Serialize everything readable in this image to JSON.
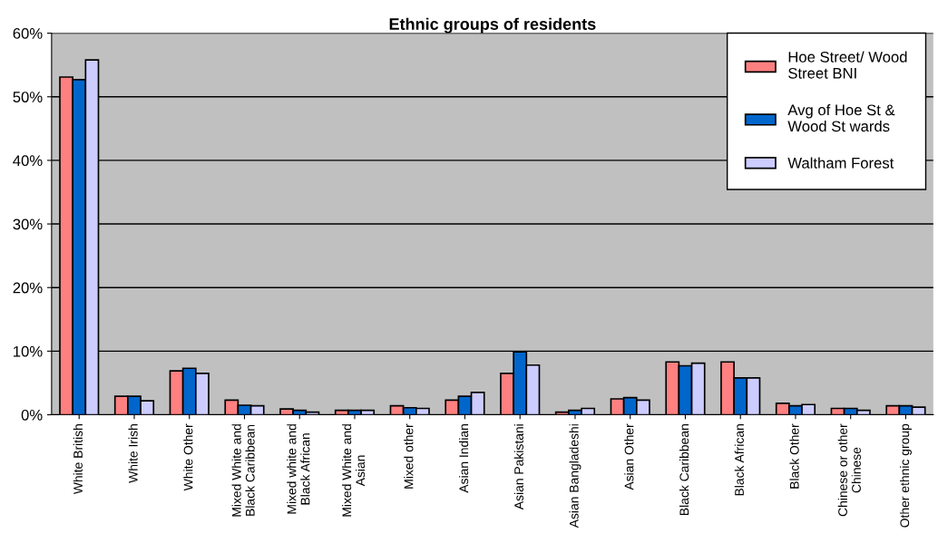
{
  "chart_data": {
    "type": "bar",
    "title": "Ethnic groups of residents",
    "categories": [
      "White British",
      "White Irish",
      "White Other",
      "Mixed White and Black Caribbean",
      "Mixed white and Black African",
      "Mixed White and Asian",
      "Mixed other",
      "Asian Indian",
      "Asian Pakistani",
      "Asian Bangladeshi",
      "Asian Other",
      "Black Caribbean",
      "Black African",
      "Black Other",
      "Chinese or other Chinese",
      "Other ethnic group"
    ],
    "series": [
      {
        "name": "Hoe Street/ Wood Street BNI",
        "color": "#ff8080",
        "values": [
          53.1,
          2.9,
          6.9,
          2.3,
          0.9,
          0.7,
          1.4,
          2.3,
          6.5,
          0.4,
          2.5,
          8.3,
          8.3,
          1.8,
          1.0,
          1.4
        ]
      },
      {
        "name": "Avg of Hoe St & Wood St wards",
        "color": "#0066cc",
        "values": [
          52.7,
          2.9,
          7.3,
          1.5,
          0.7,
          0.7,
          1.1,
          2.9,
          9.9,
          0.7,
          2.7,
          7.7,
          5.8,
          1.4,
          1.0,
          1.4
        ]
      },
      {
        "name": "Waltham Forest",
        "color": "#ccccff",
        "values": [
          55.8,
          2.2,
          6.5,
          1.4,
          0.4,
          0.7,
          1.0,
          3.5,
          7.8,
          1.0,
          2.3,
          8.1,
          5.8,
          1.6,
          0.7,
          1.2
        ]
      }
    ],
    "ylim": [
      0,
      60
    ],
    "yticks": [
      {
        "value": 0,
        "label": "0%"
      },
      {
        "value": 10,
        "label": "10%"
      },
      {
        "value": 20,
        "label": "20%"
      },
      {
        "value": 30,
        "label": "30%"
      },
      {
        "value": 40,
        "label": "40%"
      },
      {
        "value": 50,
        "label": "50%"
      },
      {
        "value": 60,
        "label": "60%"
      }
    ],
    "grid": "y",
    "legend": "top right"
  }
}
